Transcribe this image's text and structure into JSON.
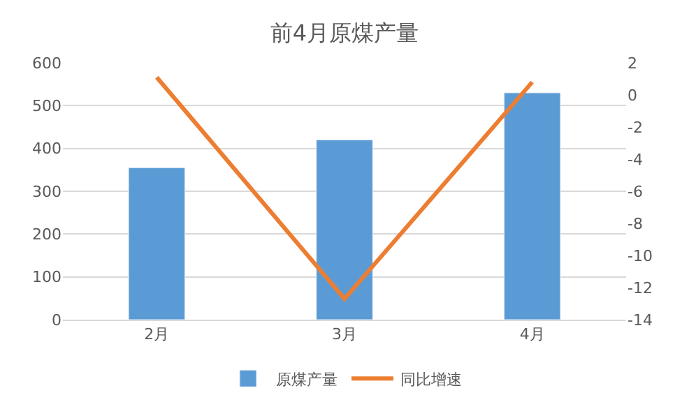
{
  "chart_data": {
    "type": "bar",
    "title": "前4月原煤产量",
    "categories": [
      "2月",
      "3月",
      "4月"
    ],
    "series": [
      {
        "name": "原煤产量",
        "color": "#5b9bd5",
        "values": [
          355,
          420,
          530
        ]
      },
      {
        "name": "同比增速",
        "type": "line",
        "axis": "y2",
        "color": "#ed7d31",
        "values": [
          1.1,
          -12.7,
          0.8
        ]
      }
    ],
    "ylim": [
      0,
      600
    ],
    "yticks": [
      0,
      100,
      200,
      300,
      400,
      500,
      600
    ],
    "y2lim": [
      -14,
      2
    ],
    "y2ticks": [
      -14,
      -12,
      -10,
      -8,
      -6,
      -4,
      -2,
      0,
      2
    ],
    "grid": "y",
    "legend": "bottom",
    "marker": "none",
    "line_style": "solid"
  }
}
